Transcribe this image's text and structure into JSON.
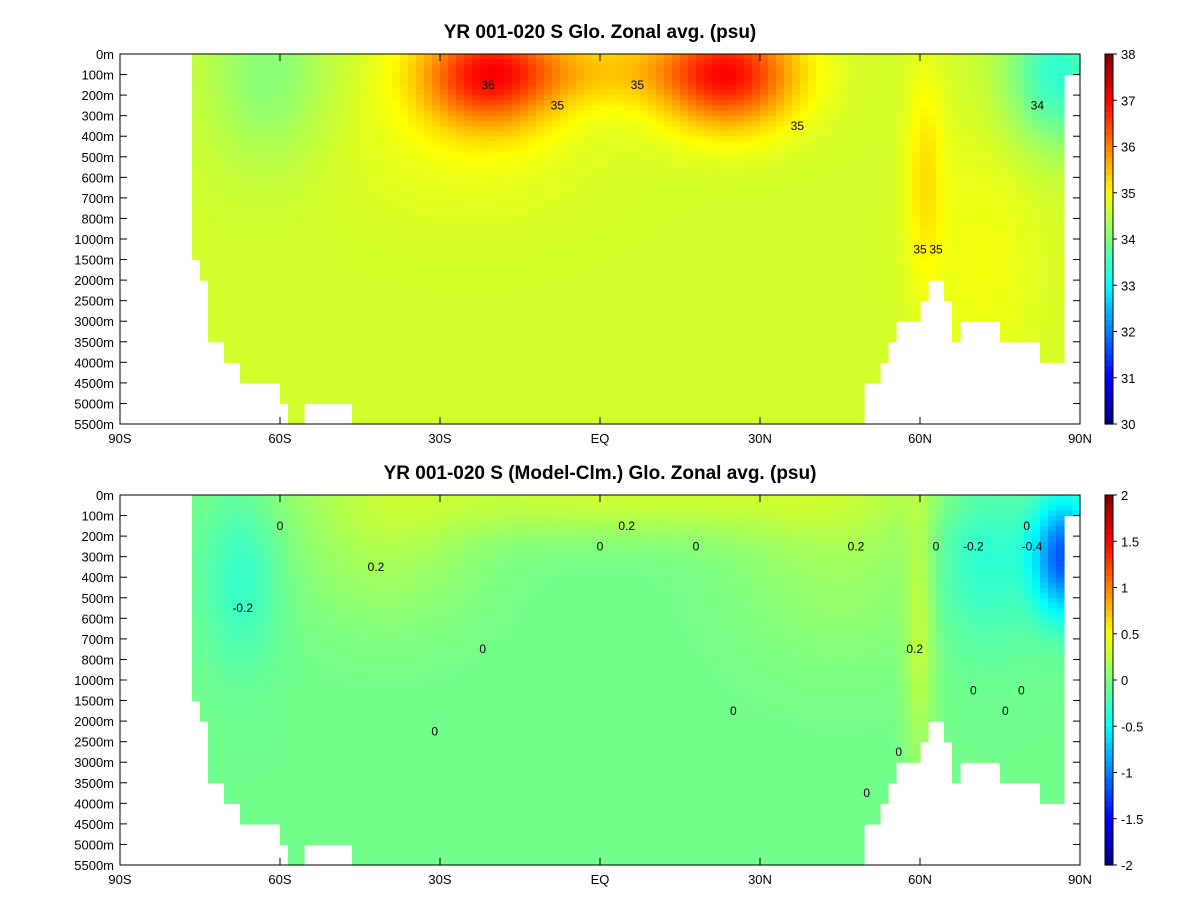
{
  "chart_data": [
    {
      "type": "heatmap",
      "title": "YR 001-020 S Glo. Zonal avg. (psu)",
      "xlabel": "",
      "ylabel": "",
      "x_ticks": [
        "90S",
        "60S",
        "30S",
        "EQ",
        "30N",
        "60N",
        "90N"
      ],
      "x_range": [
        -90,
        90
      ],
      "y_ticks": [
        "0m",
        "100m",
        "200m",
        "300m",
        "400m",
        "500m",
        "600m",
        "700m",
        "800m",
        "1000m",
        "1500m",
        "2000m",
        "2500m",
        "3000m",
        "3500m",
        "4000m",
        "4500m",
        "5000m",
        "5500m"
      ],
      "colorbar": {
        "min": 30,
        "max": 38,
        "ticks": [
          "38",
          "37",
          "36",
          "35",
          "34",
          "33",
          "32",
          "31",
          "30"
        ]
      },
      "grid": false,
      "contour_labels": [
        {
          "text": "36",
          "lat": -21,
          "depth": "100m"
        },
        {
          "text": "35",
          "lat": 7,
          "depth": "100m"
        },
        {
          "text": "35",
          "lat": -8,
          "depth": "200m"
        },
        {
          "text": "35",
          "lat": 37,
          "depth": "300m"
        },
        {
          "text": "34",
          "lat": 82,
          "depth": "200m"
        },
        {
          "text": "35",
          "lat": 60,
          "depth": "1000m"
        },
        {
          "text": "35",
          "lat": 63,
          "depth": "1000m"
        }
      ],
      "regions": [
        {
          "desc": "south subtropical max",
          "value": 36.8,
          "lat": -21,
          "depth": "100m"
        },
        {
          "desc": "north subtropical max",
          "value": 36.9,
          "lat": 25,
          "depth": "100m"
        },
        {
          "desc": "southern ocean surface",
          "value": 34.0,
          "lat": -65,
          "depth": "100m"
        },
        {
          "desc": "arctic surface",
          "value": 33.4,
          "lat": 84,
          "depth": "100m"
        },
        {
          "desc": "deep ocean",
          "value": 34.7,
          "lat": 0,
          "depth": "3000m"
        },
        {
          "desc": "atlantic tongue",
          "value": 35.2,
          "lat": 61,
          "depth": "500m"
        },
        {
          "desc": "north deep",
          "value": 34.9,
          "lat": 70,
          "depth": "1500m"
        }
      ]
    },
    {
      "type": "heatmap",
      "title": "YR 001-020 S (Model-Clm.) Glo. Zonal avg. (psu)",
      "xlabel": "",
      "ylabel": "",
      "x_ticks": [
        "90S",
        "60S",
        "30S",
        "EQ",
        "30N",
        "60N",
        "90N"
      ],
      "x_range": [
        -90,
        90
      ],
      "y_ticks": [
        "0m",
        "100m",
        "200m",
        "300m",
        "400m",
        "500m",
        "600m",
        "700m",
        "800m",
        "1000m",
        "1500m",
        "2000m",
        "2500m",
        "3000m",
        "3500m",
        "4000m",
        "4500m",
        "5000m",
        "5500m"
      ],
      "colorbar": {
        "min": -2,
        "max": 2,
        "ticks": [
          "2",
          "1.5",
          "1",
          "0.5",
          "0",
          "-0.5",
          "-1",
          "-1.5",
          "-2"
        ]
      },
      "grid": false,
      "contour_labels": [
        {
          "text": "0.2",
          "lat": 5,
          "depth": "100m"
        },
        {
          "text": "0.2",
          "lat": 48,
          "depth": "200m"
        },
        {
          "text": "0",
          "lat": -60,
          "depth": "100m"
        },
        {
          "text": "0.2",
          "lat": -42,
          "depth": "300m"
        },
        {
          "text": "0",
          "lat": 0,
          "depth": "200m"
        },
        {
          "text": "0",
          "lat": 18,
          "depth": "200m"
        },
        {
          "text": "-0.2",
          "lat": -67,
          "depth": "500m"
        },
        {
          "text": "0",
          "lat": -22,
          "depth": "700m"
        },
        {
          "text": "0",
          "lat": -31,
          "depth": "2000m"
        },
        {
          "text": "0",
          "lat": 25,
          "depth": "1500m"
        },
        {
          "text": "0.2",
          "lat": 59,
          "depth": "700m"
        },
        {
          "text": "0",
          "lat": 63,
          "depth": "200m"
        },
        {
          "text": "-0.2",
          "lat": 70,
          "depth": "200m"
        },
        {
          "text": "0",
          "lat": 80,
          "depth": "100m"
        },
        {
          "text": "-0.4",
          "lat": 81,
          "depth": "200m"
        },
        {
          "text": "0",
          "lat": 70,
          "depth": "1000m"
        },
        {
          "text": "0",
          "lat": 76,
          "depth": "1500m"
        },
        {
          "text": "0",
          "lat": 79,
          "depth": "1000m"
        },
        {
          "text": "0",
          "lat": 56,
          "depth": "2500m"
        },
        {
          "text": "0",
          "lat": 50,
          "depth": "3500m"
        }
      ],
      "regions": [
        {
          "desc": "surface mid",
          "value": 0.3,
          "lat": 10,
          "depth": "0m"
        },
        {
          "desc": "thermocline",
          "value": 0.15,
          "lat": -40,
          "depth": "200m"
        },
        {
          "desc": "southern neg",
          "value": -0.25,
          "lat": -67,
          "depth": "400m"
        },
        {
          "desc": "deep ocean",
          "value": -0.05,
          "lat": 0,
          "depth": "3000m"
        },
        {
          "desc": "arctic min",
          "value": -1.0,
          "lat": 87,
          "depth": "300m"
        },
        {
          "desc": "north tongue pos",
          "value": 0.25,
          "lat": 60,
          "depth": "800m"
        }
      ]
    }
  ]
}
